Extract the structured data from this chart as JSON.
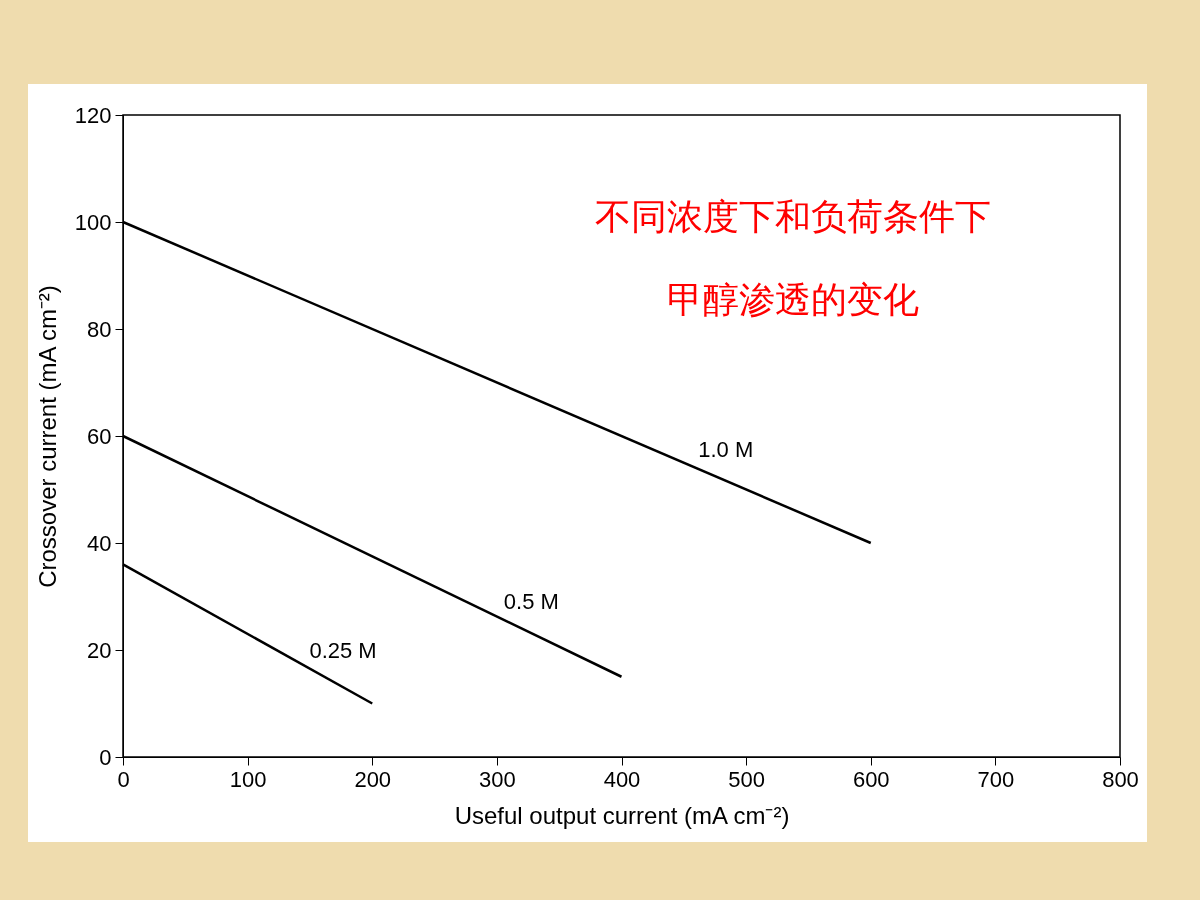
{
  "chart_data": {
    "type": "line",
    "xlabel": "Useful output current (mA cm⁻²)",
    "ylabel": "Crossover current (mA cm⁻²)",
    "annotations": [
      "不同浓度下和负荷条件下",
      "甲醇渗透的变化"
    ],
    "xlim": [
      0,
      800
    ],
    "xticks": [
      0,
      100,
      200,
      300,
      400,
      500,
      600,
      700,
      800
    ],
    "ylim": [
      0,
      120
    ],
    "yticks": [
      0,
      20,
      40,
      60,
      80,
      100,
      120
    ],
    "grid": false,
    "legend": false,
    "marker": "none",
    "line_style": "solid",
    "series": [
      {
        "name": "1.0 M",
        "color": "#000000",
        "x": [
          0,
          600
        ],
        "values": [
          100,
          40
        ]
      },
      {
        "name": "0.5 M",
        "color": "#000000",
        "x": [
          0,
          400
        ],
        "values": [
          60,
          15
        ]
      },
      {
        "name": "0.25 M",
        "color": "#000000",
        "x": [
          0,
          200
        ],
        "values": [
          36,
          10
        ]
      }
    ]
  }
}
